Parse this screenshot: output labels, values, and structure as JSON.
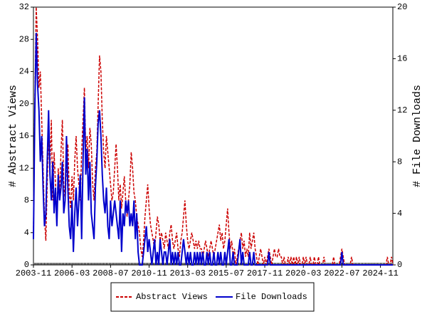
{
  "chart_data": {
    "type": "line",
    "x": [
      "2003-11",
      "2003-12",
      "2004-01",
      "2004-02",
      "2004-03",
      "2004-04",
      "2004-05",
      "2004-06",
      "2004-07",
      "2004-08",
      "2004-09",
      "2004-10",
      "2004-11",
      "2004-12",
      "2005-01",
      "2005-02",
      "2005-03",
      "2005-04",
      "2005-05",
      "2005-06",
      "2005-07",
      "2005-08",
      "2005-09",
      "2005-10",
      "2005-11",
      "2005-12",
      "2006-01",
      "2006-02",
      "2006-03",
      "2006-04",
      "2006-05",
      "2006-06",
      "2006-07",
      "2006-08",
      "2006-09",
      "2006-10",
      "2006-11",
      "2006-12",
      "2007-01",
      "2007-02",
      "2007-03",
      "2007-04",
      "2007-05",
      "2007-06",
      "2007-07",
      "2007-08",
      "2007-09",
      "2007-10",
      "2007-11",
      "2007-12",
      "2008-01",
      "2008-02",
      "2008-03",
      "2008-04",
      "2008-05",
      "2008-06",
      "2008-07",
      "2008-08",
      "2008-09",
      "2008-10",
      "2008-11",
      "2008-12",
      "2009-01",
      "2009-02",
      "2009-03",
      "2009-04",
      "2009-05",
      "2009-06",
      "2009-07",
      "2009-08",
      "2009-09",
      "2009-10",
      "2009-11",
      "2009-12",
      "2010-01",
      "2010-02",
      "2010-03",
      "2010-04",
      "2010-05",
      "2010-06",
      "2010-07",
      "2010-08",
      "2010-09",
      "2010-10",
      "2010-11",
      "2010-12",
      "2011-01",
      "2011-02",
      "2011-03",
      "2011-04",
      "2011-05",
      "2011-06",
      "2011-07",
      "2011-08",
      "2011-09",
      "2011-10",
      "2011-11",
      "2011-12",
      "2012-01",
      "2012-02",
      "2012-03",
      "2012-04",
      "2012-05",
      "2012-06",
      "2012-07",
      "2012-08",
      "2012-09",
      "2012-10",
      "2012-11",
      "2012-12",
      "2013-01",
      "2013-02",
      "2013-03",
      "2013-04",
      "2013-05",
      "2013-06",
      "2013-07",
      "2013-08",
      "2013-09",
      "2013-10",
      "2013-11",
      "2013-12",
      "2014-01",
      "2014-02",
      "2014-03",
      "2014-04",
      "2014-05",
      "2014-06",
      "2014-07",
      "2014-08",
      "2014-09",
      "2014-10",
      "2014-11",
      "2014-12",
      "2015-01",
      "2015-02",
      "2015-03",
      "2015-04",
      "2015-05",
      "2015-06",
      "2015-07",
      "2015-08",
      "2015-09",
      "2015-10",
      "2015-11",
      "2015-12",
      "2016-01",
      "2016-02",
      "2016-03",
      "2016-04",
      "2016-05",
      "2016-06",
      "2016-07",
      "2016-08",
      "2016-09",
      "2016-10",
      "2016-11",
      "2016-12",
      "2017-01",
      "2017-02",
      "2017-03",
      "2017-04",
      "2017-05",
      "2017-06",
      "2017-07",
      "2017-08",
      "2017-09",
      "2017-10",
      "2017-11",
      "2017-12",
      "2018-01",
      "2018-02",
      "2018-03",
      "2018-04",
      "2018-05",
      "2018-06",
      "2018-07",
      "2018-08",
      "2018-09",
      "2018-10",
      "2018-11",
      "2018-12",
      "2019-01",
      "2019-02",
      "2019-03",
      "2019-04",
      "2019-05",
      "2019-06",
      "2019-07",
      "2019-08",
      "2019-09",
      "2019-10",
      "2019-11",
      "2019-12",
      "2020-01",
      "2020-02",
      "2020-03",
      "2020-04",
      "2020-05",
      "2020-06",
      "2020-07",
      "2020-08",
      "2020-09",
      "2020-10",
      "2020-11",
      "2020-12",
      "2021-01",
      "2021-02",
      "2021-03",
      "2021-04",
      "2021-05",
      "2021-06",
      "2021-07",
      "2021-08",
      "2021-09",
      "2021-10",
      "2021-11",
      "2021-12",
      "2022-01",
      "2022-02",
      "2022-03",
      "2022-04",
      "2022-05",
      "2022-06",
      "2022-07",
      "2022-08",
      "2022-09",
      "2022-10",
      "2022-11",
      "2022-12",
      "2023-01",
      "2023-02",
      "2023-03",
      "2023-04",
      "2023-05",
      "2023-06",
      "2023-07",
      "2023-08",
      "2023-09",
      "2023-10",
      "2023-11",
      "2023-12",
      "2024-01",
      "2024-02",
      "2024-03",
      "2024-04",
      "2024-05",
      "2024-06",
      "2024-07",
      "2024-08",
      "2024-09",
      "2024-10",
      "2024-11",
      "2024-12",
      "2025-01",
      "2025-02",
      "2025-03",
      "2025-04",
      "2025-05",
      "2025-06",
      "2025-07",
      "2025-08"
    ],
    "xticks": [
      "2003-11",
      "2006-03",
      "2008-07",
      "2010-11",
      "2013-03",
      "2015-07",
      "2017-11",
      "2020-03",
      "2022-07",
      "2024-11"
    ],
    "ylabel": "# Abstract Views",
    "y2label": "# File Downloads",
    "ylim": [
      0,
      32
    ],
    "yticks": [
      0,
      4,
      8,
      12,
      16,
      20,
      24,
      28,
      32
    ],
    "y2lim": [
      0,
      20
    ],
    "y2ticks": [
      0,
      4,
      8,
      12,
      16,
      20
    ],
    "series": [
      {
        "name": "Abstract Views",
        "color": "#cc0000",
        "values": [
          4,
          20,
          32,
          28,
          22,
          24,
          18,
          12,
          6,
          3,
          10,
          16,
          12,
          18,
          8,
          14,
          10,
          6,
          12,
          9,
          14,
          18,
          10,
          8,
          12,
          15,
          9,
          7,
          11,
          8,
          13,
          16,
          12,
          10,
          8,
          14,
          18,
          22,
          14,
          16,
          12,
          17,
          15,
          10,
          8,
          12,
          14,
          20,
          26,
          24,
          18,
          14,
          12,
          16,
          14,
          12,
          10,
          8,
          9,
          12,
          15,
          12,
          8,
          10,
          7,
          9,
          11,
          8,
          6,
          8,
          10,
          14,
          12,
          9,
          8,
          6,
          5,
          4,
          2,
          1,
          3,
          6,
          8,
          10,
          7,
          5,
          4,
          3,
          2,
          4,
          6,
          5,
          3,
          4,
          3,
          2,
          4,
          3,
          2,
          4,
          5,
          3,
          2,
          3,
          4,
          2,
          1,
          3,
          4,
          6,
          8,
          5,
          3,
          2,
          3,
          4,
          3,
          2,
          3,
          2,
          3,
          2,
          2,
          1,
          2,
          3,
          2,
          1,
          2,
          3,
          2,
          1,
          2,
          3,
          4,
          5,
          3,
          4,
          2,
          3,
          5,
          7,
          4,
          2,
          3,
          1,
          2,
          0,
          1,
          2,
          3,
          4,
          2,
          3,
          1,
          2,
          1,
          4,
          2,
          3,
          4,
          2,
          1,
          0,
          1,
          2,
          1,
          0,
          1,
          0,
          1,
          2,
          1,
          0,
          1,
          2,
          1,
          1,
          2,
          1,
          1,
          0,
          1,
          0,
          0,
          1,
          0,
          1,
          0,
          1,
          0,
          1,
          0,
          1,
          0,
          0,
          1,
          0,
          1,
          0,
          0,
          1,
          0,
          0,
          1,
          0,
          0,
          1,
          0,
          0,
          0,
          1,
          0,
          0,
          0,
          0,
          0,
          0,
          1,
          0,
          0,
          0,
          0,
          1,
          2,
          1,
          0,
          0,
          0,
          0,
          0,
          1,
          0,
          0,
          0,
          0,
          0,
          0,
          0,
          0,
          0,
          0,
          0,
          0,
          0,
          0,
          0,
          0,
          0,
          0,
          0,
          0,
          0,
          0,
          0,
          0,
          0,
          1,
          0,
          0,
          1,
          0
        ]
      },
      {
        "name": "File Downloads",
        "color": "#0000cc",
        "axis": "y2",
        "values": [
          2,
          12,
          18,
          14,
          12,
          8,
          10,
          6,
          3,
          4,
          8,
          12,
          7,
          5,
          8,
          4,
          6,
          3,
          7,
          5,
          6,
          8,
          4,
          5,
          10,
          6,
          3,
          2,
          5,
          1,
          4,
          6,
          3,
          5,
          7,
          2,
          8,
          13,
          7,
          9,
          5,
          8,
          4,
          3,
          2,
          6,
          8,
          11,
          12,
          10,
          7,
          5,
          4,
          6,
          3,
          2,
          5,
          3,
          4,
          5,
          4,
          3,
          2,
          5,
          1,
          4,
          3,
          5,
          4,
          5,
          3,
          4,
          3,
          5,
          2,
          4,
          1,
          0,
          0,
          0,
          1,
          2,
          3,
          1,
          2,
          1,
          0,
          1,
          2,
          0,
          1,
          0,
          2,
          1,
          0,
          1,
          1,
          0,
          1,
          2,
          0,
          1,
          0,
          1,
          0,
          1,
          0,
          0,
          1,
          2,
          1,
          0,
          1,
          0,
          1,
          0,
          0,
          1,
          0,
          1,
          0,
          1,
          0,
          1,
          0,
          0,
          1,
          0,
          1,
          0,
          0,
          1,
          0,
          0,
          1,
          0,
          1,
          0,
          0,
          1,
          0,
          1,
          2,
          0,
          0,
          1,
          0,
          0,
          0,
          1,
          2,
          0,
          1,
          0,
          0,
          0,
          0,
          1,
          0,
          0,
          1,
          0,
          0,
          0,
          0,
          0,
          0,
          0,
          0,
          0,
          0,
          1,
          0,
          0,
          0,
          0,
          0,
          0,
          0,
          0,
          0,
          0,
          0,
          0,
          0,
          0,
          0,
          0,
          0,
          0,
          0,
          0,
          0,
          0,
          0,
          0,
          0,
          0,
          0,
          0,
          0,
          0,
          0,
          0,
          0,
          0,
          0,
          0,
          0,
          0,
          0,
          0,
          0,
          0,
          0,
          0,
          0,
          0,
          0,
          0,
          0,
          0,
          0,
          0,
          1,
          0,
          0,
          0,
          0,
          0,
          0,
          0,
          0,
          0,
          0,
          0,
          0,
          0,
          0,
          0,
          0,
          0,
          0,
          0,
          0,
          0,
          0,
          0,
          0,
          0,
          0,
          0,
          0,
          0,
          0,
          0,
          0,
          0,
          0,
          0,
          0,
          0
        ]
      }
    ],
    "legend": "bottom"
  }
}
